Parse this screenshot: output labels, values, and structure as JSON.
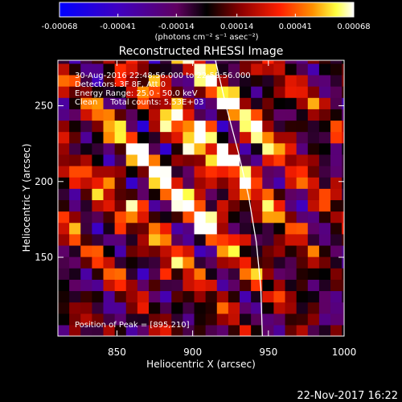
{
  "chart_data": {
    "type": "heatmap",
    "title": "Reconstructed RHESSI Image",
    "xlabel": "Heliocentric X (arcsec)",
    "ylabel": "Heliocentric Y (arcsec)",
    "xlim": [
      811,
      1000
    ],
    "ylim": [
      98,
      280
    ],
    "xticks": [
      850,
      900,
      950,
      1000
    ],
    "yticks": [
      150,
      200,
      250
    ],
    "colorbar": {
      "ticks": [
        "-0.00068",
        "-0.00041",
        "-0.00014",
        "0.00014",
        "0.00041",
        "0.00068"
      ],
      "range": [
        -0.00068,
        0.00068
      ],
      "unit_label": "(photons cm⁻² s⁻¹ asec⁻²)",
      "colormap": [
        "#0000ff",
        "#4000c0",
        "#800080",
        "#000000",
        "#800000",
        "#ff2000",
        "#ff8000",
        "#ffff00",
        "#ffffff"
      ]
    },
    "annotations": [
      "30-Aug-2016 22:48:56.000 to 22:58:56.000",
      "Detectors: 3F 8F, Att 0",
      "Energy Range: 25.0 - 50.0 keV",
      "Clean     Total counts: 5.53E+03"
    ],
    "peak_label": "Position of Peak = [895,210]",
    "peak": [
      895,
      210
    ],
    "limb_curve": [
      [
        915,
        280
      ],
      [
        922,
        250
      ],
      [
        930,
        220
      ],
      [
        937,
        190
      ],
      [
        942,
        160
      ],
      [
        945,
        130
      ],
      [
        946,
        98
      ]
    ]
  },
  "footer": {
    "timestamp": "22-Nov-2017 16:22"
  }
}
